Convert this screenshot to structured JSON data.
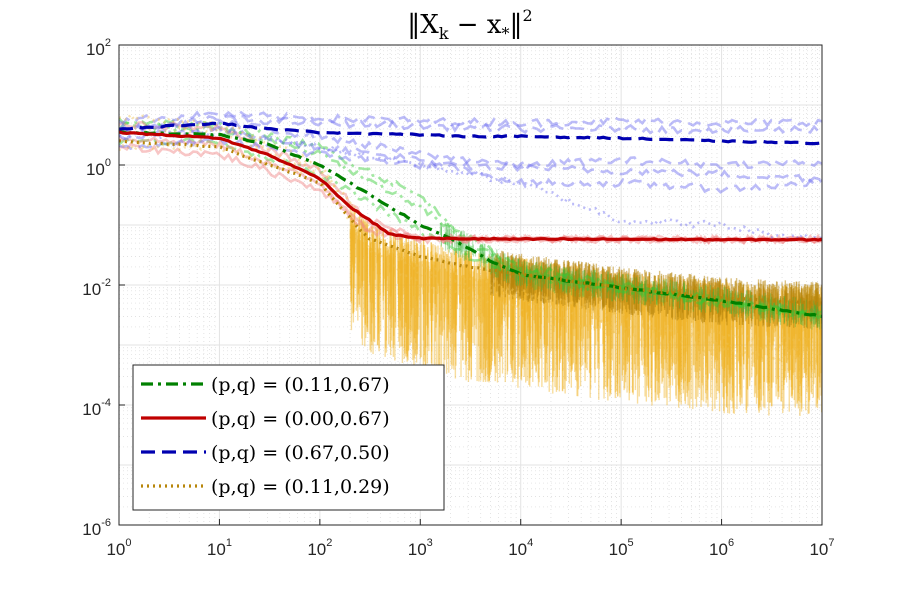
{
  "chart_data": {
    "type": "line",
    "title": "‖X_k − x_*‖²",
    "title_parts": {
      "open": "‖X",
      "sub_k": "k",
      "minus": " − x",
      "sub_star": "*",
      "close": "‖",
      "sup": "2"
    },
    "xscale": "log",
    "yscale": "log",
    "xlim": [
      1,
      10000000
    ],
    "ylim": [
      1e-06,
      100
    ],
    "xticks": [
      {
        "base": "10",
        "exp": "0",
        "value": 1
      },
      {
        "base": "10",
        "exp": "1",
        "value": 10
      },
      {
        "base": "10",
        "exp": "2",
        "value": 100
      },
      {
        "base": "10",
        "exp": "3",
        "value": 1000
      },
      {
        "base": "10",
        "exp": "4",
        "value": 10000
      },
      {
        "base": "10",
        "exp": "5",
        "value": 100000
      },
      {
        "base": "10",
        "exp": "6",
        "value": 1000000
      },
      {
        "base": "10",
        "exp": "7",
        "value": 10000000
      }
    ],
    "yticks": [
      {
        "base": "10",
        "exp": "-6",
        "value": 1e-06
      },
      {
        "base": "10",
        "exp": "-4",
        "value": 0.0001
      },
      {
        "base": "10",
        "exp": "-2",
        "value": 0.01
      },
      {
        "base": "10",
        "exp": "0",
        "value": 1
      },
      {
        "base": "10",
        "exp": "2",
        "value": 100
      }
    ],
    "grid": true,
    "legend_position": "bottom-left",
    "series": [
      {
        "name": "(p,q) = (0.11,0.67)",
        "color": "#008000",
        "style": "dashdot",
        "x": [
          1,
          10,
          30,
          100,
          200,
          500,
          1000,
          2000,
          5000,
          10000,
          100000,
          1000000,
          10000000
        ],
        "y": [
          3.5,
          3.2,
          2.2,
          1.0,
          0.5,
          0.2,
          0.1,
          0.06,
          0.025,
          0.015,
          0.009,
          0.0055,
          0.003
        ]
      },
      {
        "name": "(p,q) = (0.00,0.67)",
        "color": "#C00000",
        "style": "solid",
        "x": [
          1,
          10,
          30,
          100,
          200,
          500,
          1000,
          10000,
          100000,
          1000000,
          10000000
        ],
        "y": [
          3.5,
          2.8,
          1.5,
          0.6,
          0.2,
          0.07,
          0.06,
          0.058,
          0.058,
          0.057,
          0.057
        ]
      },
      {
        "name": "(p,q) = (0.67,0.50)",
        "color": "#0000B0",
        "style": "dashed",
        "x": [
          1,
          10,
          30,
          100,
          1000,
          3000,
          10000,
          100000,
          1000000,
          10000000
        ],
        "y": [
          4.0,
          5.0,
          4.0,
          3.5,
          3.2,
          3.0,
          3.0,
          2.8,
          2.5,
          2.3
        ]
      },
      {
        "name": "(p,q) = (0.11,0.29)",
        "color": "#B8860B",
        "style": "dotted",
        "x": [
          1,
          10,
          100,
          300,
          1000,
          3000,
          10000,
          100000,
          1000000,
          10000000
        ],
        "y": [
          2.5,
          2.0,
          0.5,
          0.06,
          0.03,
          0.02,
          0.015,
          0.009,
          0.006,
          0.005
        ]
      }
    ],
    "background_runs": [
      {
        "color": "#32CD32",
        "style": "dashdot",
        "x": [
          1,
          10,
          100,
          1000,
          3000,
          10000,
          100000,
          1000000,
          10000000
        ],
        "y": [
          4.5,
          4.0,
          1.5,
          0.2,
          0.05,
          0.018,
          0.009,
          0.005,
          0.003
        ]
      },
      {
        "color": "#32CD32",
        "style": "dashdot",
        "x": [
          1,
          10,
          100,
          1000,
          3000,
          10000,
          100000,
          1000000,
          10000000
        ],
        "y": [
          2.5,
          2.5,
          0.7,
          0.08,
          0.03,
          0.014,
          0.008,
          0.005,
          0.003
        ]
      },
      {
        "color": "#32CD32",
        "style": "dashdot",
        "x": [
          1,
          10,
          100,
          1000,
          3000,
          10000,
          100000,
          1000000,
          10000000
        ],
        "y": [
          5.5,
          4.5,
          2.0,
          0.3,
          0.06,
          0.02,
          0.01,
          0.0055,
          0.0032
        ]
      },
      {
        "color": "#F08080",
        "style": "solid",
        "x": [
          1,
          10,
          100,
          300,
          1000,
          10000,
          100000,
          10000000
        ],
        "y": [
          2.0,
          1.5,
          0.4,
          0.08,
          0.058,
          0.058,
          0.058,
          0.057
        ]
      },
      {
        "color": "#F08080",
        "style": "solid",
        "x": [
          1,
          10,
          100,
          300,
          1000,
          10000,
          100000,
          10000000
        ],
        "y": [
          5.0,
          4.0,
          0.8,
          0.12,
          0.06,
          0.058,
          0.058,
          0.057
        ]
      },
      {
        "color": "#F08080",
        "style": "solid",
        "x": [
          1,
          10,
          100,
          300,
          1000,
          10000,
          100000,
          10000000
        ],
        "y": [
          2.8,
          2.2,
          0.5,
          0.09,
          0.06,
          0.058,
          0.058,
          0.057
        ]
      },
      {
        "color": "#6A6AF0",
        "style": "dashed",
        "x": [
          1,
          10,
          100,
          1000,
          10000,
          100000,
          1000000,
          10000000
        ],
        "y": [
          5.5,
          7.0,
          6.0,
          5.5,
          5.0,
          5.5,
          5.0,
          5.2
        ]
      },
      {
        "color": "#6A6AF0",
        "style": "dashed",
        "x": [
          1,
          10,
          100,
          1000,
          10000,
          100000,
          1000000,
          10000000
        ],
        "y": [
          3.5,
          6.0,
          5.0,
          4.5,
          4.0,
          4.0,
          3.8,
          4.0
        ]
      },
      {
        "color": "#6A6AF0",
        "style": "dashed",
        "x": [
          1,
          10,
          100,
          1000,
          10000,
          100000,
          1000000,
          10000000
        ],
        "y": [
          2.0,
          2.5,
          1.5,
          1.0,
          0.9,
          0.8,
          0.7,
          0.6
        ]
      },
      {
        "color": "#6A6AF0",
        "style": "dashed",
        "x": [
          1,
          10,
          100,
          1000,
          10000,
          100000,
          1000000,
          10000000
        ],
        "y": [
          3.0,
          4.0,
          2.0,
          1.2,
          0.5,
          0.5,
          0.4,
          0.5
        ]
      },
      {
        "color": "#6A6AF0",
        "style": "dashed",
        "x": [
          1,
          10,
          100,
          1000,
          10000,
          100000,
          1000000,
          10000000
        ],
        "y": [
          4.0,
          5.0,
          3.0,
          1.5,
          1.0,
          1.2,
          1.0,
          1.1
        ]
      },
      {
        "color": "#6A6AF0",
        "style": "dotted",
        "x": [
          1,
          10,
          100,
          1000,
          10000,
          100000,
          1000000,
          3000000,
          10000000
        ],
        "y": [
          3.0,
          3.5,
          2.0,
          1.0,
          0.5,
          0.12,
          0.1,
          0.07,
          0.06
        ]
      },
      {
        "color": "#F0C050",
        "style": "dotted",
        "x": [
          1,
          10,
          100,
          300,
          1000,
          10000,
          100000,
          1000000,
          10000000
        ],
        "y": [
          6.5,
          5.0,
          1.0,
          0.1,
          0.02,
          0.008,
          0.003,
          0.001,
          0.0008
        ]
      },
      {
        "color": "#F0C050",
        "style": "dotted",
        "x": [
          1,
          10,
          100,
          300,
          1000,
          10000,
          100000,
          1000000,
          10000000
        ],
        "y": [
          4.0,
          3.5,
          0.8,
          0.08,
          0.015,
          0.006,
          0.002,
          0.0015,
          0.0012
        ]
      },
      {
        "color": "#F0C050",
        "style": "dotted",
        "x": [
          1,
          10,
          100,
          300,
          1000,
          10000,
          100000,
          1000000,
          10000000
        ],
        "y": [
          2.0,
          2.0,
          0.6,
          0.04,
          0.01,
          0.004,
          0.0015,
          0.0008,
          0.0005
        ]
      }
    ]
  }
}
